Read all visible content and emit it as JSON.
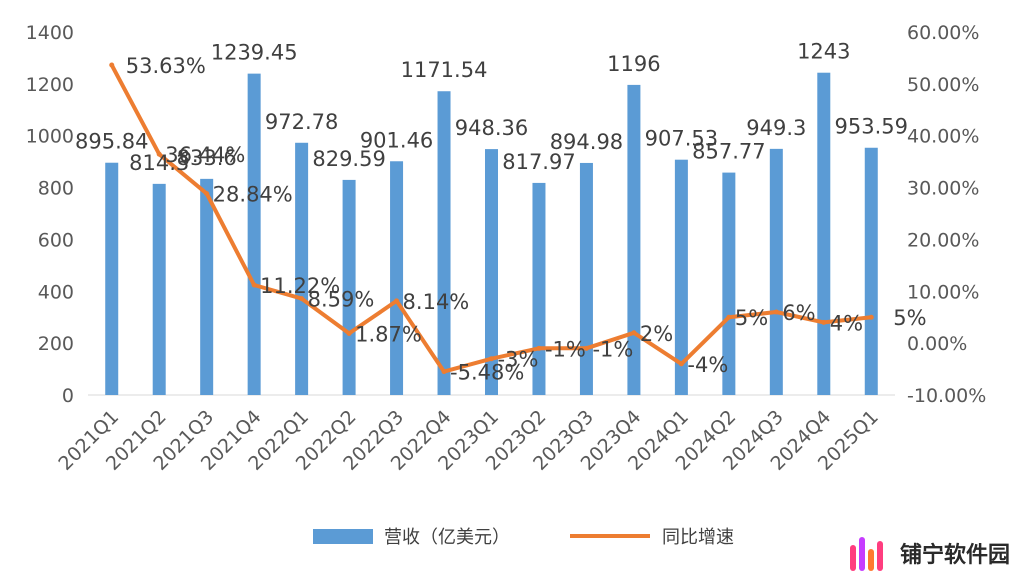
{
  "chart_data": {
    "type": "bar+line",
    "categories": [
      "2021Q1",
      "2021Q2",
      "2021Q3",
      "2021Q4",
      "2022Q1",
      "2022Q2",
      "2022Q3",
      "2022Q4",
      "2023Q1",
      "2023Q2",
      "2023Q3",
      "2023Q4",
      "2024Q1",
      "2024Q2",
      "2024Q3",
      "2024Q4",
      "2025Q1"
    ],
    "series": [
      {
        "name": "营收（亿美元）",
        "type": "bar",
        "axis": "left",
        "color": "#5B9BD5",
        "values": [
          895.84,
          814.3,
          833.6,
          1239.45,
          972.78,
          829.59,
          901.46,
          1171.54,
          948.36,
          817.97,
          894.98,
          1196,
          907.53,
          857.77,
          949.3,
          1243,
          953.59
        ],
        "labels": [
          "895.84",
          "814.3",
          "833.6",
          "1239.45",
          "972.78",
          "829.59",
          "901.46",
          "1171.54",
          "948.36",
          "817.97",
          "894.98",
          "1196",
          "907.53",
          "857.77",
          "949.3",
          "1243",
          "953.59"
        ]
      },
      {
        "name": "同比增速",
        "type": "line",
        "axis": "right",
        "color": "#ED7D31",
        "values": [
          53.63,
          36.44,
          28.84,
          11.22,
          8.59,
          1.87,
          8.14,
          -5.48,
          -3,
          -1,
          -1,
          2,
          -4,
          5,
          6,
          4,
          5
        ],
        "labels": [
          "53.63%",
          "36.44%",
          "28.84%",
          "11.22%",
          "8.59%",
          "1.87%",
          "8.14%",
          "-5.48%",
          "-3%",
          "-1%",
          "-1%",
          "2%",
          "-4%",
          "5%",
          "6%",
          "4%",
          "5%"
        ]
      }
    ],
    "y_left": {
      "min": 0,
      "max": 1400,
      "ticks": [
        "0",
        "200",
        "400",
        "600",
        "800",
        "1000",
        "1200",
        "1400"
      ]
    },
    "y_right": {
      "min": -10,
      "max": 60,
      "ticks": [
        "-10.00%",
        "0.00%",
        "10.00%",
        "20.00%",
        "30.00%",
        "40.00%",
        "50.00%",
        "60.00%"
      ]
    },
    "grid": false,
    "legend": "bottom"
  },
  "brand": {
    "name": "铺宁软件园",
    "colors": [
      "#ff3d7f",
      "#c63cff",
      "#ff7a2f",
      "#ff3d7f"
    ]
  }
}
